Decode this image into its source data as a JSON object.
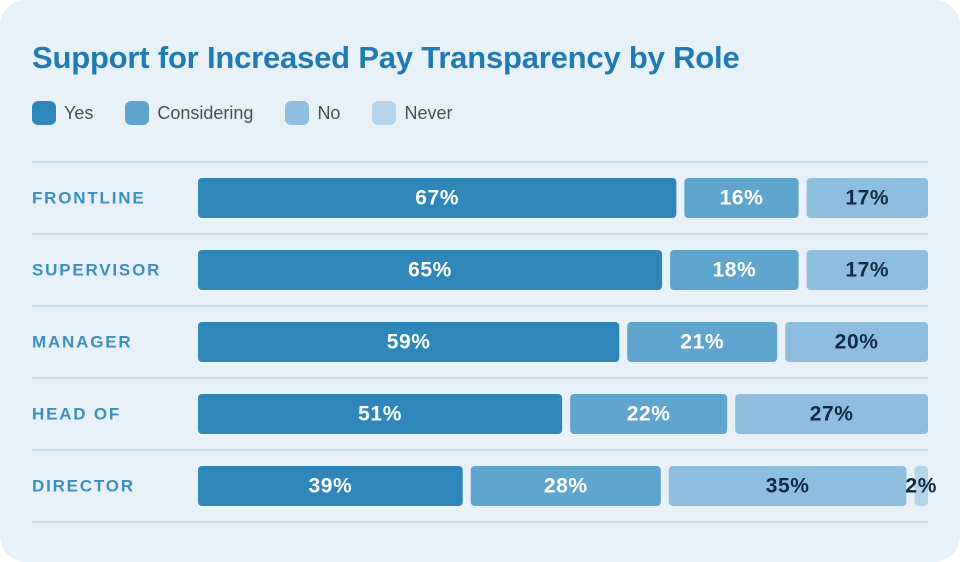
{
  "chart_data": {
    "type": "bar",
    "orientation": "horizontal",
    "stacked": true,
    "title": "Support for Increased Pay Transparency by Role",
    "categories": [
      "FRONTLINE",
      "SUPERVISOR",
      "MANAGER",
      "HEAD OF",
      "DIRECTOR"
    ],
    "series": [
      {
        "name": "Yes",
        "values": [
          67,
          65,
          59,
          51,
          39
        ],
        "labels": [
          "67%",
          "65%",
          "59%",
          "51%",
          "39%"
        ],
        "color": "#2e86b9",
        "text_color": "#ffffff"
      },
      {
        "name": "Considering",
        "values": [
          16,
          18,
          21,
          22,
          28
        ],
        "labels": [
          "16%",
          "18%",
          "21%",
          "22%",
          "28%"
        ],
        "color": "#5ea4cc",
        "text_color": "#ffffff"
      },
      {
        "name": "No",
        "values": [
          17,
          17,
          20,
          27,
          35
        ],
        "labels": [
          "17%",
          "17%",
          "20%",
          "27%",
          "35%"
        ],
        "color": "#8dbedd",
        "text_color": "#0d2b45"
      },
      {
        "name": "Never",
        "values": [
          0,
          0,
          0,
          0,
          2
        ],
        "labels": [
          "",
          "",
          "",
          "",
          "2%"
        ],
        "color": "#b5d6ea",
        "text_color": "#0d2b45"
      }
    ],
    "legend_position": "top-left",
    "grid": false,
    "xlim": [
      0,
      100
    ]
  },
  "colors": {
    "title": "#1f7bb3",
    "row_label": "#3b8fc2",
    "divider": "#b6d5ea",
    "background": "#e9f1f8"
  }
}
